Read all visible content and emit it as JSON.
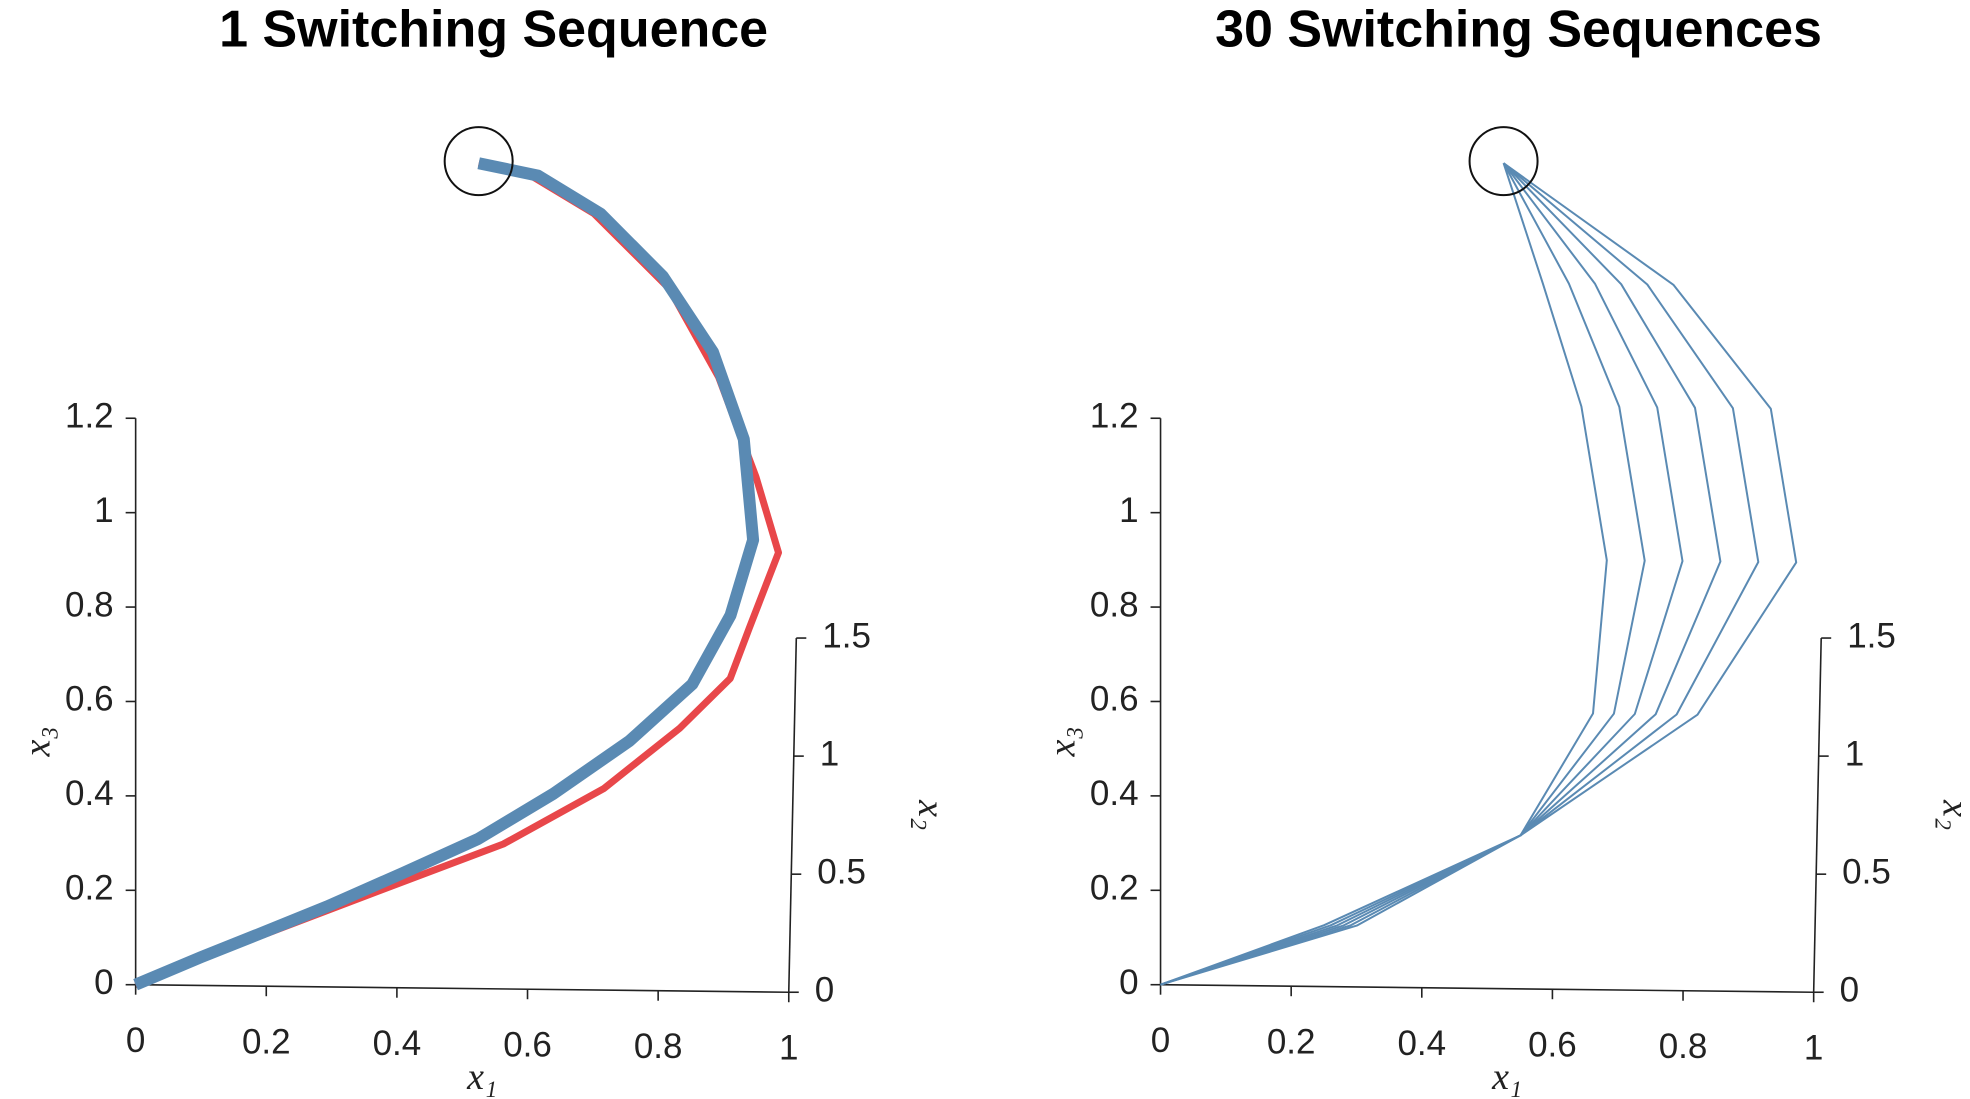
{
  "chart_data": [
    {
      "type": "line3d",
      "title": "1 Switching Sequence",
      "xlabel": "x₁",
      "ylabel": "x₂",
      "zlabel": "x₃",
      "xlim": [
        0,
        1
      ],
      "ylim": [
        0,
        1.5
      ],
      "zlim": [
        0,
        1.2
      ],
      "xticks": [
        0,
        0.2,
        0.4,
        0.6,
        0.8,
        1
      ],
      "yticks": [
        0,
        0.5,
        1,
        1.5
      ],
      "zticks": [
        0,
        0.2,
        0.4,
        0.6,
        0.8,
        1,
        1.2
      ],
      "series": [
        {
          "color": "#e8474a",
          "linewidth": 7,
          "x": [
            0,
            0.177,
            0.369,
            0.562,
            0.715,
            0.831,
            0.908,
            0.937,
            0.981,
            0.946,
            0.888,
            0.812,
            0.696,
            0.6,
            0.519
          ],
          "y": [
            0,
            0.046,
            0.094,
            0.142,
            0.197,
            0.257,
            0.306,
            0.356,
            0.43,
            0.503,
            0.601,
            0.686,
            0.759,
            0.795,
            0.807
          ],
          "z": [
            0,
            0.076,
            0.156,
            0.236,
            0.328,
            0.428,
            0.51,
            0.593,
            0.716,
            0.839,
            1.001,
            1.144,
            1.265,
            1.325,
            1.345
          ]
        },
        {
          "color": "#5a8ab3",
          "linewidth": 12,
          "x": [
            0,
            0.1,
            0.196,
            0.292,
            0.408,
            0.523,
            0.638,
            0.754,
            0.85,
            0.908,
            0.942,
            0.927,
            0.879,
            0.802,
            0.706,
            0.61,
            0.519
          ],
          "y": [
            0,
            0.028,
            0.053,
            0.078,
            0.112,
            0.146,
            0.191,
            0.244,
            0.3,
            0.368,
            0.442,
            0.54,
            0.625,
            0.698,
            0.759,
            0.795,
            0.807
          ],
          "z": [
            0,
            0.046,
            0.088,
            0.131,
            0.187,
            0.244,
            0.319,
            0.406,
            0.5,
            0.613,
            0.736,
            0.9,
            1.042,
            1.164,
            1.265,
            1.326,
            1.345
          ]
        }
      ]
    },
    {
      "type": "line3d",
      "title": "30 Switching Sequences",
      "xlabel": "x₁",
      "ylabel": "x₂",
      "zlabel": "x₃",
      "xlim": [
        0,
        1
      ],
      "ylim": [
        0,
        1.5
      ],
      "zlim": [
        0,
        1.2
      ],
      "xticks": [
        0,
        0.2,
        0.4,
        0.6,
        0.8,
        1
      ],
      "yticks": [
        0,
        0.5,
        1,
        1.5
      ],
      "zticks": [
        0,
        0.2,
        0.4,
        0.6,
        0.8,
        1,
        1.2
      ],
      "series": [
        {
          "color": "#5a8ab3",
          "linewidth": 2,
          "x": [
            0,
            0.3,
            0.55,
            0.66,
            0.68,
            0.64,
            0.58,
            0.519
          ],
          "y": [
            0,
            0.06,
            0.15,
            0.27,
            0.42,
            0.57,
            0.69,
            0.807
          ],
          "z": [
            0,
            0.1,
            0.25,
            0.45,
            0.7,
            0.95,
            1.15,
            1.345
          ]
        },
        {
          "color": "#5a8ab3",
          "linewidth": 2,
          "x": [
            0,
            0.29,
            0.55,
            0.692,
            0.738,
            0.698,
            0.62,
            0.519
          ],
          "y": [
            0,
            0.06,
            0.15,
            0.27,
            0.42,
            0.57,
            0.69,
            0.807
          ],
          "z": [
            0,
            0.1,
            0.25,
            0.45,
            0.7,
            0.95,
            1.15,
            1.345
          ]
        },
        {
          "color": "#5a8ab3",
          "linewidth": 2,
          "x": [
            0,
            0.28,
            0.55,
            0.724,
            0.796,
            0.756,
            0.66,
            0.519
          ],
          "y": [
            0,
            0.06,
            0.15,
            0.27,
            0.42,
            0.57,
            0.69,
            0.807
          ],
          "z": [
            0,
            0.1,
            0.25,
            0.45,
            0.7,
            0.95,
            1.15,
            1.345
          ]
        },
        {
          "color": "#5a8ab3",
          "linewidth": 2,
          "x": [
            0,
            0.27,
            0.55,
            0.756,
            0.854,
            0.814,
            0.7,
            0.519
          ],
          "y": [
            0,
            0.06,
            0.15,
            0.27,
            0.42,
            0.57,
            0.69,
            0.807
          ],
          "z": [
            0,
            0.1,
            0.25,
            0.45,
            0.7,
            0.95,
            1.15,
            1.345
          ]
        },
        {
          "color": "#5a8ab3",
          "linewidth": 2,
          "x": [
            0,
            0.26,
            0.55,
            0.788,
            0.912,
            0.872,
            0.74,
            0.519
          ],
          "y": [
            0,
            0.06,
            0.15,
            0.27,
            0.42,
            0.57,
            0.69,
            0.807
          ],
          "z": [
            0,
            0.1,
            0.25,
            0.45,
            0.7,
            0.95,
            1.15,
            1.345
          ]
        },
        {
          "color": "#5a8ab3",
          "linewidth": 2,
          "x": [
            0,
            0.25,
            0.55,
            0.82,
            0.97,
            0.93,
            0.78,
            0.519
          ],
          "y": [
            0,
            0.06,
            0.15,
            0.27,
            0.42,
            0.57,
            0.69,
            0.807
          ],
          "z": [
            0,
            0.1,
            0.25,
            0.45,
            0.7,
            0.95,
            1.15,
            1.345
          ]
        }
      ]
    }
  ]
}
